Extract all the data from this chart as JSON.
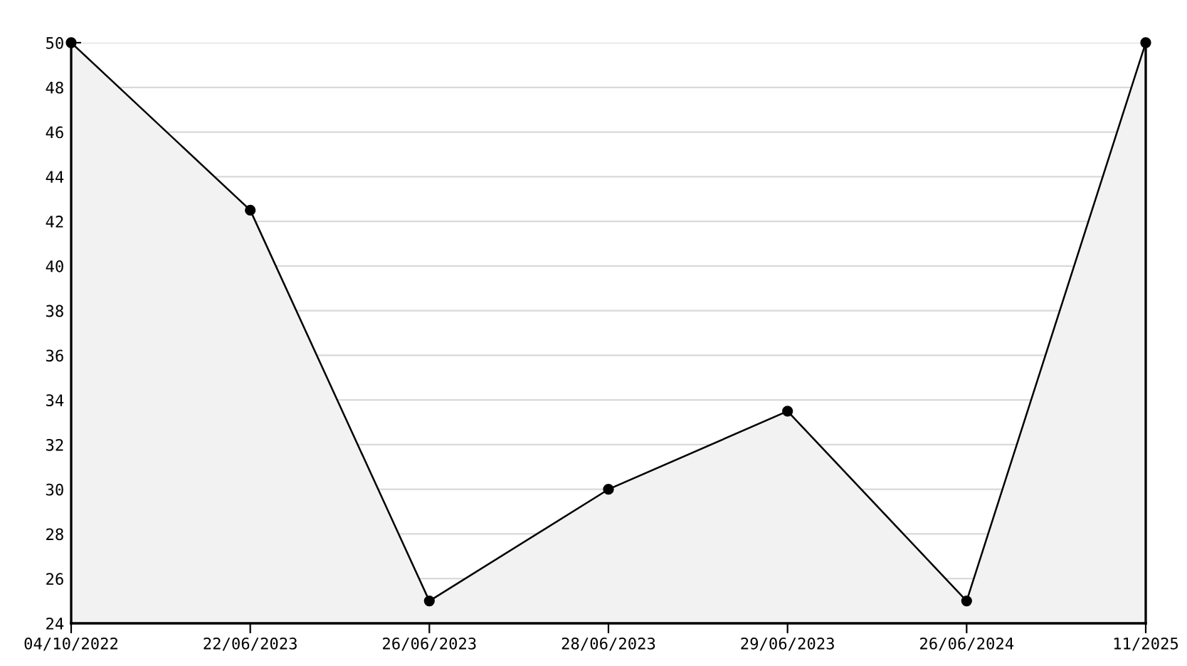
{
  "chart_data": {
    "type": "area",
    "categories": [
      "04/10/2022",
      "22/06/2023",
      "26/06/2023",
      "28/06/2023",
      "29/06/2023",
      "26/06/2024",
      "11/2025"
    ],
    "series": [
      {
        "color": "#000000",
        "values": [
          50,
          42.5,
          25,
          30,
          33.5,
          25,
          50
        ]
      }
    ],
    "ylim": [
      24,
      50
    ],
    "yticks": [
      24,
      26,
      28,
      30,
      32,
      34,
      36,
      38,
      40,
      42,
      44,
      46,
      48,
      50
    ],
    "grid": "y",
    "marker": "circle",
    "line_style": "solid",
    "legend": false
  }
}
